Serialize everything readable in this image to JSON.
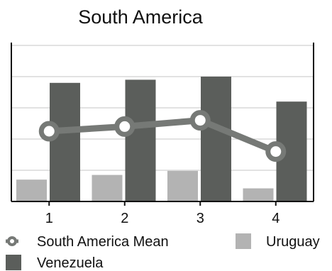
{
  "chart_data": {
    "type": "bar",
    "title": "South America",
    "xlabel": "",
    "ylabel": "",
    "categories": [
      "1",
      "2",
      "3",
      "4"
    ],
    "ylim": [
      0,
      5
    ],
    "grid": true,
    "legend_position": "bottom",
    "series": [
      {
        "name": "Uruguay",
        "kind": "bar",
        "color": "#b3b3b3",
        "values": [
          0.7,
          0.85,
          0.98,
          0.42
        ]
      },
      {
        "name": "Venezuela",
        "kind": "bar",
        "color": "#5b5e5b",
        "values": [
          3.8,
          3.9,
          4.0,
          3.2
        ]
      },
      {
        "name": "South America Mean",
        "kind": "line",
        "color": "#767976",
        "values": [
          2.25,
          2.4,
          2.6,
          1.6
        ]
      }
    ]
  }
}
